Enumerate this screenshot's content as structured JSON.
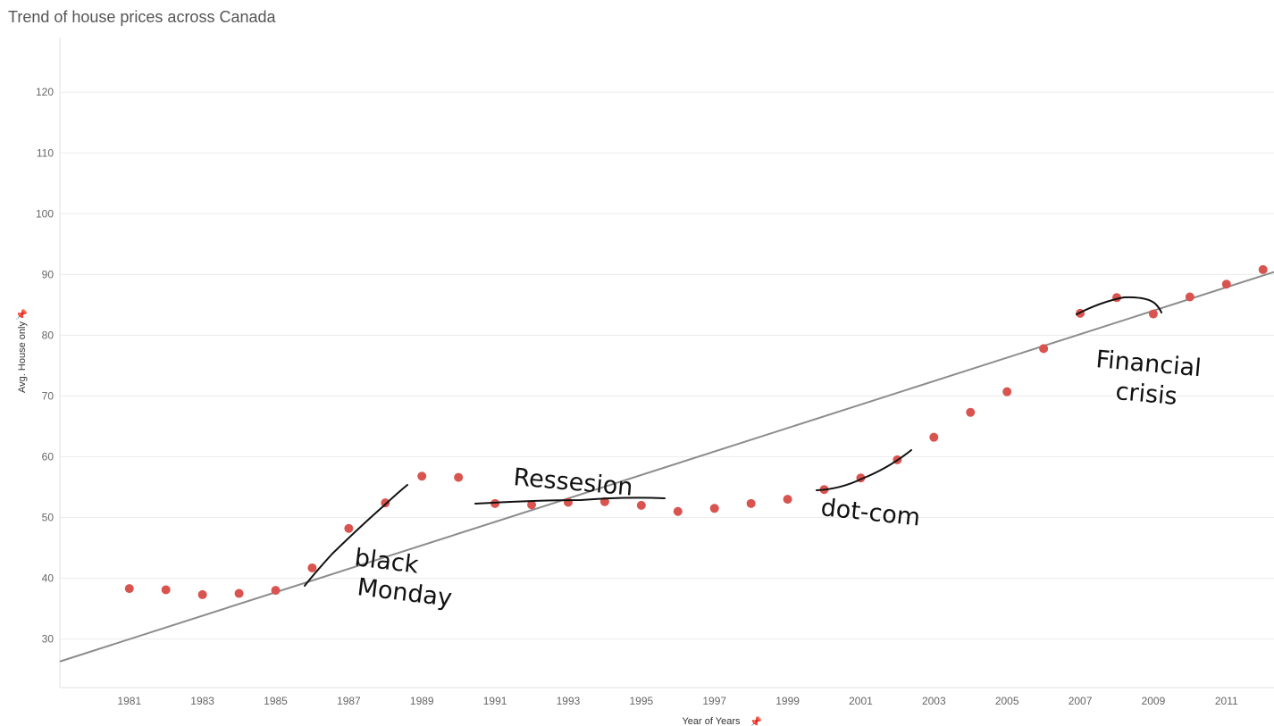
{
  "title": "Trend of house prices across Canada",
  "colors": {
    "point": "#d9534f",
    "trend": "#8c8c8c",
    "grid": "#ececec",
    "ink": "#111111"
  },
  "chart_data": {
    "type": "scatter",
    "title": "Trend of house prices across Canada",
    "xlabel": "Year of Years",
    "ylabel": "Avg. House only",
    "xlim": [
      1979.1,
      2012.3
    ],
    "ylim": [
      22,
      129
    ],
    "yticks": [
      30,
      40,
      50,
      60,
      70,
      80,
      90,
      100,
      110,
      120
    ],
    "xticks": [
      1981,
      1983,
      1985,
      1987,
      1989,
      1991,
      1993,
      1995,
      1997,
      1999,
      2001,
      2003,
      2005,
      2007,
      2009,
      2011
    ],
    "grid": true,
    "series": [
      {
        "x": [
          1981,
          1982,
          1983,
          1984,
          1985,
          1986,
          1987,
          1988,
          1989,
          1990,
          1991,
          1992,
          1993,
          1994,
          1995,
          1996,
          1997,
          1998,
          1999,
          2000,
          2001,
          2002,
          2003,
          2004,
          2005,
          2006,
          2007,
          2008,
          2009,
          2010,
          2011,
          2012
        ],
        "y": [
          38.3,
          38.1,
          37.3,
          37.5,
          38.0,
          41.7,
          48.2,
          52.4,
          56.8,
          56.6,
          52.3,
          52.1,
          52.5,
          52.6,
          52.0,
          51.0,
          51.5,
          52.3,
          53.0,
          54.6,
          56.5,
          59.5,
          63.2,
          67.3,
          70.7,
          77.8,
          83.6,
          86.2,
          83.5,
          86.3,
          88.4,
          90.8
        ]
      }
    ],
    "trend_line": {
      "x": [
        1979.1,
        2012.3
      ],
      "y": [
        26.3,
        90.4
      ]
    }
  },
  "annotations": {
    "black_monday_1": "black",
    "black_monday_2": "Monday",
    "recession": "Ressesion",
    "dotcom": "dot-com",
    "financial_1": "Financial",
    "financial_2": "crisis"
  }
}
